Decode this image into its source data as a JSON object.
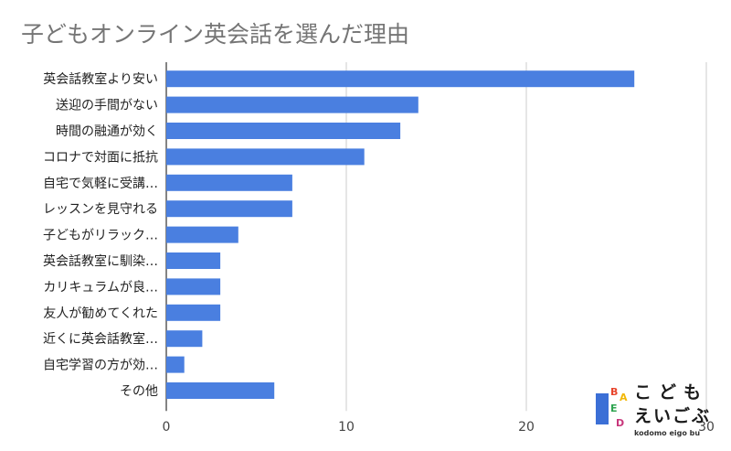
{
  "chart_data": {
    "type": "bar",
    "orientation": "horizontal",
    "title": "子どもオンライン英会話を選んだ理由",
    "categories": [
      "英会話教室より安い",
      "送迎の手間がない",
      "時間の融通が効く",
      "コロナで対面に抵抗",
      "自宅で気軽に受講…",
      "レッスンを見守れる",
      "子どもがリラック…",
      "英会話教室に馴染…",
      "カリキュラムが良…",
      "友人が勧めてくれた",
      "近くに英会話教室…",
      "自宅学習の方が効…",
      "その他"
    ],
    "values": [
      26,
      14,
      13,
      11,
      7,
      7,
      4,
      3,
      3,
      3,
      2,
      1,
      6
    ],
    "xlim": [
      0,
      30
    ],
    "xticks": [
      0,
      10,
      20,
      30
    ],
    "bar_color": "#4a7fe0",
    "grid": true
  },
  "logo": {
    "line1": "こども",
    "line2": "えいごぶ",
    "subtitle": "kodomo eigo bu",
    "blocks": [
      "B",
      "A",
      "E",
      "D"
    ]
  }
}
